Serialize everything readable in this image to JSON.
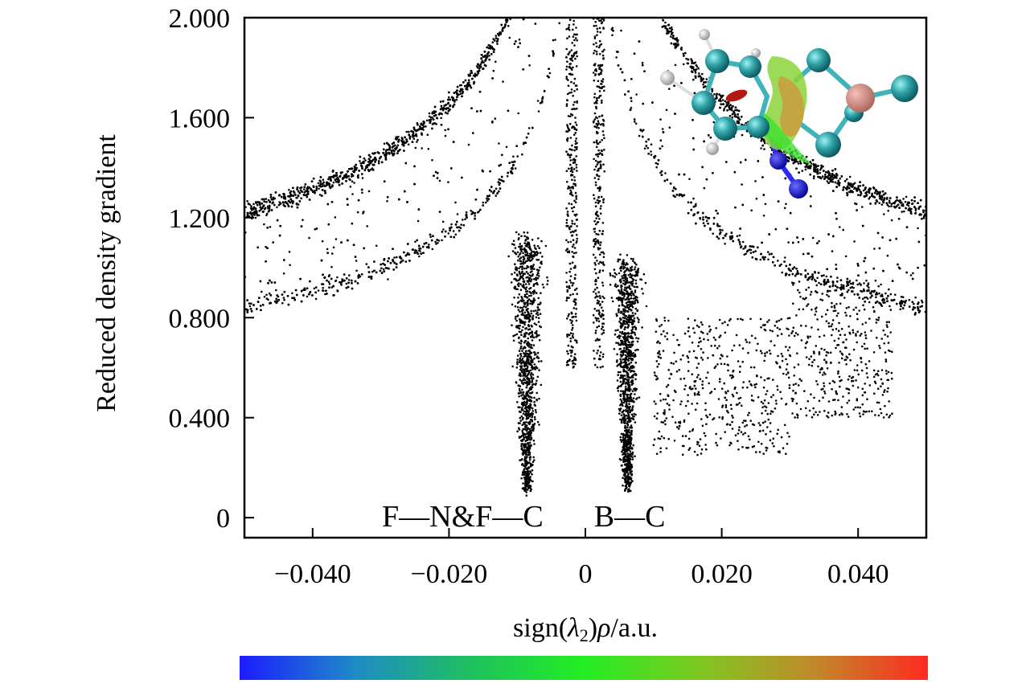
{
  "chart_data": {
    "type": "scatter",
    "title": "",
    "xlabel": "sign(λ2)ρ/a.u.",
    "xlabel_parts": {
      "before": "sign(",
      "lambda": "λ",
      "sub": "2",
      "after": ")",
      "rho": "ρ",
      "unit": "/a.u."
    },
    "ylabel": "Reduced density gradient",
    "xlim": [
      -0.05,
      0.05
    ],
    "ylim": [
      -0.08,
      2.0
    ],
    "x_ticks": [
      {
        "value": -0.04,
        "label": "−0.040"
      },
      {
        "value": -0.02,
        "label": "−0.020"
      },
      {
        "value": 0,
        "label": "0"
      },
      {
        "value": 0.02,
        "label": "0.020"
      },
      {
        "value": 0.04,
        "label": "0.040"
      }
    ],
    "y_ticks": [
      {
        "value": 0,
        "label": "0"
      },
      {
        "value": 0.4,
        "label": "0.400"
      },
      {
        "value": 0.8,
        "label": "0.800"
      },
      {
        "value": 1.2,
        "label": "1.200"
      },
      {
        "value": 1.6,
        "label": "1.600"
      },
      {
        "value": 2.0,
        "label": "2.000"
      }
    ],
    "grid": false,
    "marker_color": "#000000",
    "annotations": [
      {
        "text": "F—N&F—C",
        "x": -0.018,
        "y": 0.01
      },
      {
        "text": "B—C",
        "x": 0.0065,
        "y": 0.01
      }
    ],
    "scatter_bands": [
      {
        "name": "upper-band",
        "x_range": [
          -0.05,
          0.05
        ],
        "y_at_xlim_left": 1.25,
        "y_at_xlim_right": 1.0
      },
      {
        "name": "lower-band",
        "x_range": [
          -0.05,
          0.05
        ],
        "y_at_xlim_left": 0.82,
        "y_at_xlim_right": 0.75
      },
      {
        "name": "spike-negative",
        "x_center": -0.0085,
        "y_min": 0.12
      },
      {
        "name": "spike-positive",
        "x_center": 0.006,
        "y_min": 0.12
      },
      {
        "name": "fan-positive",
        "x_range": [
          0.01,
          0.03
        ],
        "y_min": 0.2
      }
    ],
    "inset": "molecular-structure-isosurface",
    "colorbar": {
      "colors": [
        "#1c1cff",
        "#1f8ac8",
        "#1ec060",
        "#22ee22",
        "#7ec820",
        "#c08a2a",
        "#ff2a20"
      ],
      "labels": []
    }
  }
}
